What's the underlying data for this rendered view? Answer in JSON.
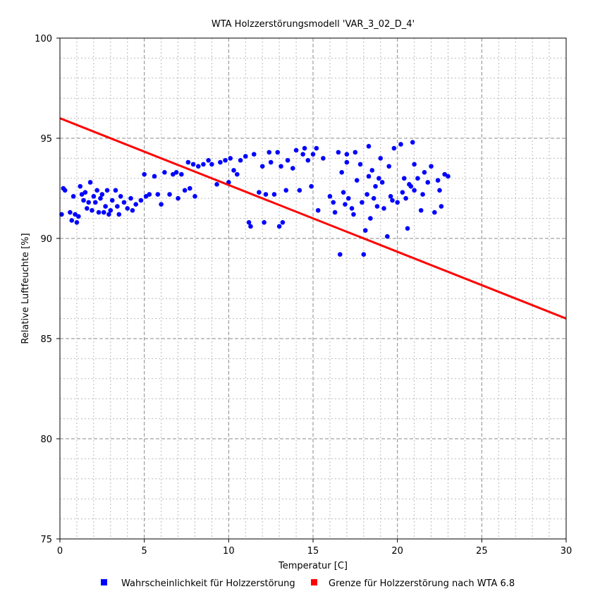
{
  "chart_data": {
    "type": "scatter",
    "title": "WTA Holzzerstörungsmodell 'VAR_3_02_D_4'",
    "xlabel": "Temperatur [C]",
    "ylabel": "Relative Luftfeuchte [%]",
    "xlim": [
      0,
      30
    ],
    "ylim": [
      75,
      100
    ],
    "xticks": [
      0,
      5,
      10,
      15,
      20,
      25,
      30
    ],
    "yticks": [
      75,
      80,
      85,
      90,
      95,
      100
    ],
    "grid": {
      "major": "dashed",
      "minor": "dotted",
      "minor_step": 1
    },
    "legend_placement": "bottom",
    "series": [
      {
        "name": "Wahrscheinlichkeit für Holzzerstörung",
        "kind": "scatter",
        "color": "#0000ff",
        "points": [
          [
            0.1,
            91.2
          ],
          [
            0.2,
            92.5
          ],
          [
            0.3,
            92.4
          ],
          [
            0.6,
            91.3
          ],
          [
            0.7,
            90.9
          ],
          [
            0.8,
            92.1
          ],
          [
            0.9,
            91.2
          ],
          [
            1.0,
            90.8
          ],
          [
            1.1,
            91.1
          ],
          [
            1.2,
            92.6
          ],
          [
            1.3,
            92.2
          ],
          [
            1.4,
            91.9
          ],
          [
            1.5,
            92.3
          ],
          [
            1.6,
            91.5
          ],
          [
            1.7,
            91.8
          ],
          [
            1.8,
            92.8
          ],
          [
            1.9,
            91.4
          ],
          [
            2.0,
            92.1
          ],
          [
            2.1,
            91.8
          ],
          [
            2.2,
            92.4
          ],
          [
            2.3,
            91.3
          ],
          [
            2.4,
            92.0
          ],
          [
            2.5,
            92.2
          ],
          [
            2.6,
            91.3
          ],
          [
            2.7,
            91.6
          ],
          [
            2.8,
            92.4
          ],
          [
            2.9,
            91.2
          ],
          [
            3.0,
            91.4
          ],
          [
            3.1,
            91.9
          ],
          [
            3.3,
            92.4
          ],
          [
            3.4,
            91.6
          ],
          [
            3.5,
            91.2
          ],
          [
            3.6,
            92.1
          ],
          [
            3.8,
            91.8
          ],
          [
            4.0,
            91.5
          ],
          [
            4.2,
            92.0
          ],
          [
            4.3,
            91.4
          ],
          [
            4.5,
            91.7
          ],
          [
            4.8,
            91.9
          ],
          [
            5.0,
            93.2
          ],
          [
            5.1,
            92.1
          ],
          [
            5.3,
            92.2
          ],
          [
            5.6,
            93.1
          ],
          [
            5.8,
            92.2
          ],
          [
            6.0,
            91.7
          ],
          [
            6.2,
            93.3
          ],
          [
            6.5,
            92.2
          ],
          [
            6.7,
            93.2
          ],
          [
            6.9,
            93.3
          ],
          [
            7.0,
            92.0
          ],
          [
            7.2,
            93.2
          ],
          [
            7.4,
            92.4
          ],
          [
            7.6,
            93.8
          ],
          [
            7.7,
            92.5
          ],
          [
            7.9,
            93.7
          ],
          [
            8.0,
            92.1
          ],
          [
            8.2,
            93.6
          ],
          [
            8.5,
            93.7
          ],
          [
            8.8,
            93.9
          ],
          [
            9.0,
            93.7
          ],
          [
            9.3,
            92.7
          ],
          [
            9.5,
            93.8
          ],
          [
            9.8,
            93.9
          ],
          [
            10.0,
            92.8
          ],
          [
            10.1,
            94.0
          ],
          [
            10.3,
            93.4
          ],
          [
            10.5,
            93.2
          ],
          [
            10.7,
            93.9
          ],
          [
            11.0,
            94.1
          ],
          [
            11.2,
            90.8
          ],
          [
            11.3,
            90.6
          ],
          [
            11.5,
            94.2
          ],
          [
            11.8,
            92.3
          ],
          [
            12.0,
            93.6
          ],
          [
            12.1,
            90.8
          ],
          [
            12.2,
            92.2
          ],
          [
            12.4,
            94.3
          ],
          [
            12.5,
            93.8
          ],
          [
            12.7,
            92.2
          ],
          [
            12.9,
            94.3
          ],
          [
            13.0,
            90.6
          ],
          [
            13.1,
            93.6
          ],
          [
            13.2,
            90.8
          ],
          [
            13.4,
            92.4
          ],
          [
            13.5,
            93.9
          ],
          [
            13.8,
            93.5
          ],
          [
            14.0,
            94.4
          ],
          [
            14.2,
            92.4
          ],
          [
            14.4,
            94.2
          ],
          [
            14.5,
            94.5
          ],
          [
            14.7,
            93.9
          ],
          [
            14.9,
            92.6
          ],
          [
            15.0,
            94.2
          ],
          [
            15.2,
            94.5
          ],
          [
            15.3,
            91.4
          ],
          [
            15.6,
            94.0
          ],
          [
            16.0,
            92.1
          ],
          [
            16.3,
            91.3
          ],
          [
            16.5,
            94.3
          ],
          [
            16.6,
            89.2
          ],
          [
            16.7,
            93.3
          ],
          [
            16.8,
            92.3
          ],
          [
            17.0,
            94.2
          ],
          [
            17.1,
            92.0
          ],
          [
            17.3,
            91.5
          ],
          [
            17.5,
            94.3
          ],
          [
            17.6,
            92.9
          ],
          [
            17.8,
            93.7
          ],
          [
            17.9,
            91.8
          ],
          [
            18.0,
            89.2
          ],
          [
            18.1,
            90.4
          ],
          [
            18.2,
            92.2
          ],
          [
            18.3,
            94.6
          ],
          [
            18.4,
            91.0
          ],
          [
            18.5,
            93.4
          ],
          [
            18.7,
            92.6
          ],
          [
            18.9,
            93.0
          ],
          [
            19.0,
            94.0
          ],
          [
            19.2,
            91.5
          ],
          [
            19.4,
            90.1
          ],
          [
            19.6,
            92.1
          ],
          [
            19.8,
            94.5
          ],
          [
            20.0,
            91.8
          ],
          [
            20.2,
            94.7
          ],
          [
            20.4,
            93.0
          ],
          [
            20.6,
            90.5
          ],
          [
            20.7,
            92.7
          ],
          [
            20.9,
            94.8
          ],
          [
            21.0,
            92.4
          ],
          [
            21.2,
            93.0
          ],
          [
            21.4,
            91.4
          ],
          [
            21.6,
            93.3
          ],
          [
            21.8,
            92.8
          ],
          [
            22.0,
            93.6
          ],
          [
            22.2,
            91.3
          ],
          [
            22.4,
            92.9
          ],
          [
            22.6,
            91.6
          ],
          [
            22.8,
            93.2
          ],
          [
            23.0,
            93.1
          ],
          [
            17.0,
            93.8
          ],
          [
            18.3,
            93.1
          ],
          [
            19.1,
            92.8
          ],
          [
            20.5,
            92.0
          ],
          [
            21.0,
            93.7
          ],
          [
            16.2,
            91.8
          ],
          [
            17.4,
            91.2
          ],
          [
            18.8,
            91.6
          ],
          [
            19.5,
            93.6
          ],
          [
            20.3,
            92.3
          ],
          [
            20.8,
            92.6
          ],
          [
            21.5,
            92.2
          ],
          [
            22.5,
            92.4
          ],
          [
            16.9,
            91.7
          ],
          [
            18.6,
            92.0
          ],
          [
            19.7,
            91.9
          ]
        ]
      },
      {
        "name": "Grenze für Holzzerstörung nach WTA 6.8",
        "kind": "line",
        "color": "#ff0000",
        "points": [
          [
            0,
            96
          ],
          [
            30,
            86
          ]
        ]
      }
    ]
  }
}
